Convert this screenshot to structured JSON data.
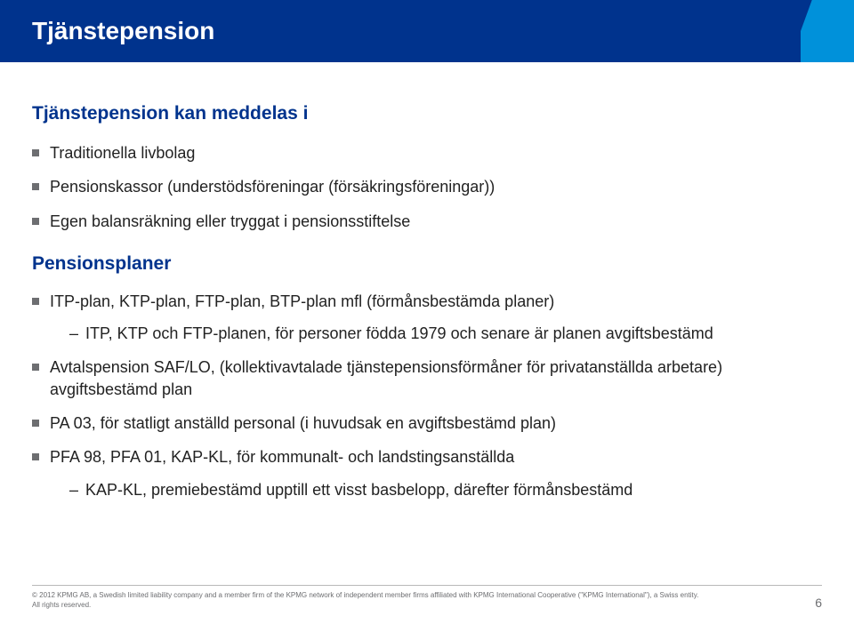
{
  "header": {
    "title": "Tjänstepension"
  },
  "intro": {
    "heading": "Tjänstepension kan meddelas i",
    "items": [
      "Traditionella livbolag",
      "Pensionskassor (understödsföreningar (försäkringsföreningar))",
      "Egen balansräkning eller tryggat i pensionsstiftelse"
    ]
  },
  "plans": {
    "heading": "Pensionsplaner",
    "items": [
      {
        "text": "ITP-plan, KTP-plan, FTP-plan, BTP-plan mfl (förmånsbestämda planer)",
        "sub": [
          "ITP, KTP och FTP-planen, för personer födda 1979 och senare är planen avgiftsbestämd"
        ]
      },
      {
        "text": "Avtalspension SAF/LO, (kollektivavtalade tjänstepensionsförmåner för privatanställda arbetare) avgiftsbestämd plan"
      },
      {
        "text": "PA 03, för statligt anställd personal (i huvudsak en avgiftsbestämd plan)"
      },
      {
        "text": "PFA 98, PFA 01, KAP-KL, för kommunalt- och landstingsanställda",
        "sub": [
          "KAP-KL, premiebestämd upptill ett visst basbelopp, därefter förmånsbestämd"
        ]
      }
    ]
  },
  "footer": {
    "copyright": "© 2012 KPMG AB, a Swedish limited liability company and a member firm of the KPMG network of independent member firms affiliated with KPMG International Cooperative (\"KPMG International\"), a Swiss entity. All rights reserved.",
    "page": "6"
  }
}
